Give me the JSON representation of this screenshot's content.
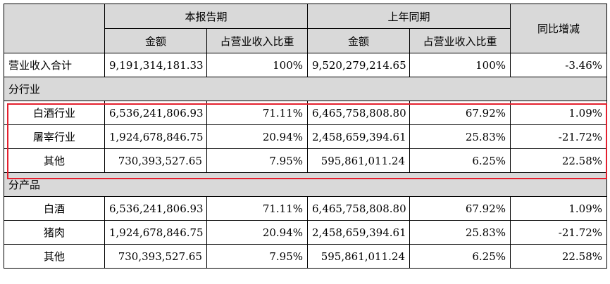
{
  "header": {
    "current_period": "本报告期",
    "prior_period": "上年同期",
    "yoy_change": "同比增减",
    "amount": "金额",
    "share_of_revenue": "占营业收入比重"
  },
  "total_row": {
    "label": "营业收入合计",
    "current_amount": "9,191,314,181.33",
    "current_share": "100%",
    "prior_amount": "9,520,279,214.65",
    "prior_share": "100%",
    "change": "-3.46%"
  },
  "sections": [
    {
      "title": "分行业",
      "rows": [
        {
          "label": "白酒行业",
          "current_amount": "6,536,241,806.93",
          "current_share": "71.11%",
          "prior_amount": "6,465,758,808.80",
          "prior_share": "67.92%",
          "change": "1.09%"
        },
        {
          "label": "屠宰行业",
          "current_amount": "1,924,678,846.75",
          "current_share": "20.94%",
          "prior_amount": "2,458,659,394.61",
          "prior_share": "25.83%",
          "change": "-21.72%"
        },
        {
          "label": "其他",
          "current_amount": "730,393,527.65",
          "current_share": "7.95%",
          "prior_amount": "595,861,011.24",
          "prior_share": "6.25%",
          "change": "22.58%"
        }
      ]
    },
    {
      "title": "分产品",
      "rows": [
        {
          "label": "白酒",
          "current_amount": "6,536,241,806.93",
          "current_share": "71.11%",
          "prior_amount": "6,465,758,808.80",
          "prior_share": "67.92%",
          "change": "1.09%"
        },
        {
          "label": "猪肉",
          "current_amount": "1,924,678,846.75",
          "current_share": "20.94%",
          "prior_amount": "2,458,659,394.61",
          "prior_share": "25.83%",
          "change": "-21.72%"
        },
        {
          "label": "其他",
          "current_amount": "730,393,527.65",
          "current_share": "7.95%",
          "prior_amount": "595,861,011.24",
          "prior_share": "6.25%",
          "change": "22.58%"
        }
      ]
    }
  ],
  "colors": {
    "header_fill": "#d9d9d9",
    "highlight_border": "#e4202e",
    "grid": "#000000"
  }
}
